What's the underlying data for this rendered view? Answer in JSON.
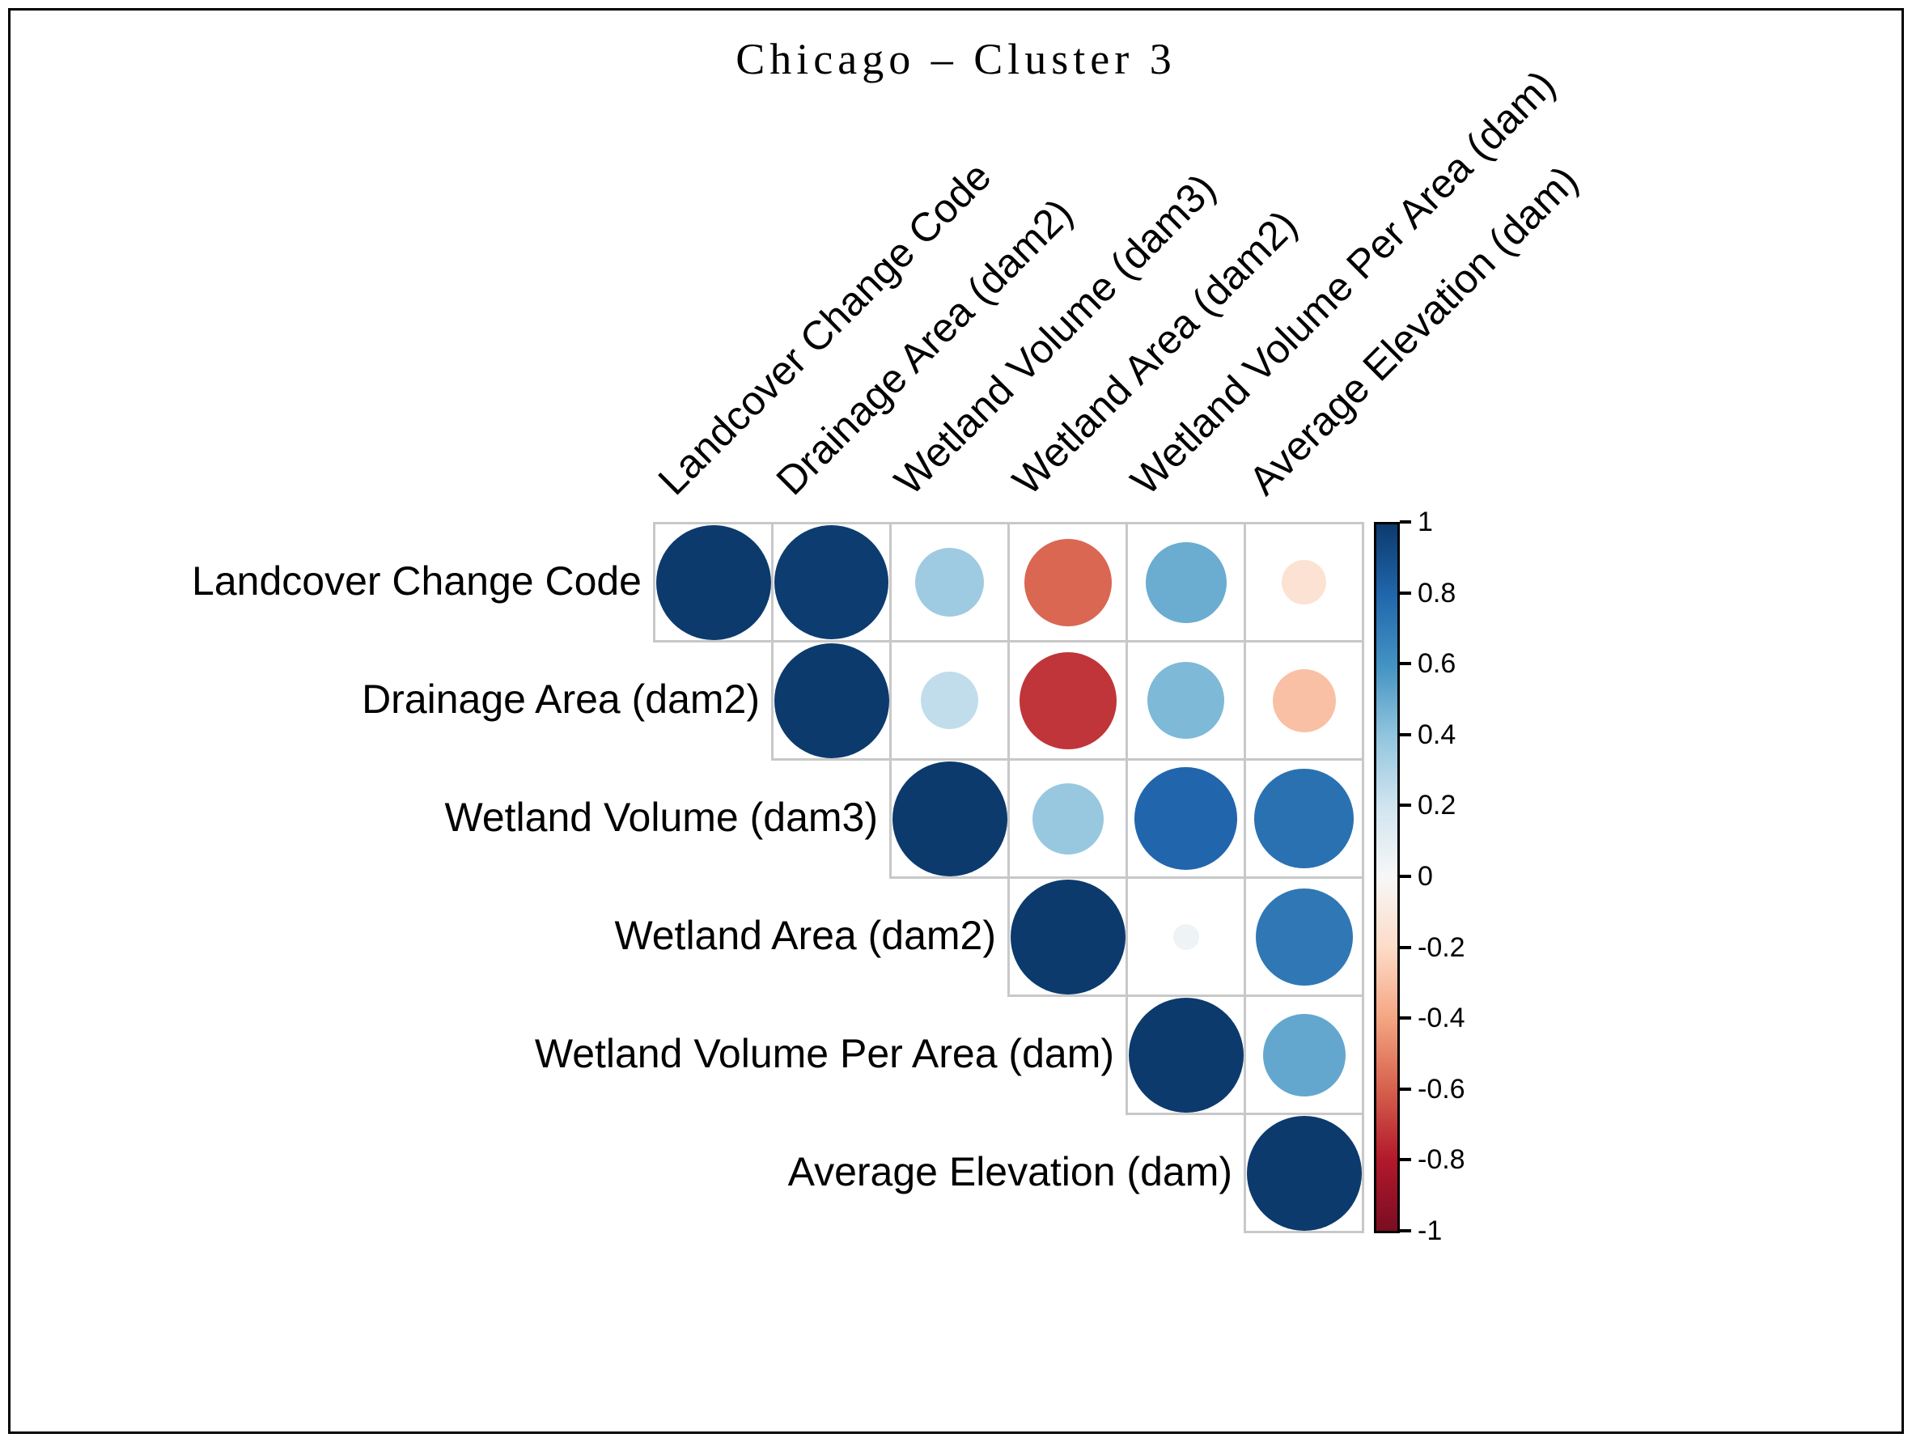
{
  "title": "Chicago – Cluster 3",
  "chart_data": {
    "type": "heatmap",
    "subtype": "correlation-matrix-circles",
    "title": "Chicago – Cluster 3",
    "layout": "upper-triangle",
    "grid": true,
    "variables": [
      "Landcover Change Code",
      "Drainage Area (dam2)",
      "Wetland Volume (dam3)",
      "Wetland Area (dam2)",
      "Wetland Volume Per Area (dam)",
      "Average Elevation (dam)"
    ],
    "values": [
      [
        1,
        0.99,
        0.36,
        -0.58,
        0.5,
        -0.15
      ],
      [
        null,
        1,
        0.25,
        -0.72,
        0.45,
        -0.3
      ],
      [
        null,
        null,
        1,
        0.38,
        0.8,
        0.75
      ],
      [
        null,
        null,
        null,
        1,
        0.05,
        0.72
      ],
      [
        null,
        null,
        null,
        null,
        1,
        0.52
      ],
      [
        null,
        null,
        null,
        null,
        null,
        1
      ]
    ],
    "value_range": [
      -1,
      1
    ],
    "legend": {
      "position": "right",
      "orientation": "vertical",
      "tick_values": [
        1,
        0.8,
        0.6,
        0.4,
        0.2,
        0,
        -0.2,
        -0.4,
        -0.6,
        -0.8,
        -1
      ],
      "tick_labels": [
        "1",
        "0.8",
        "0.6",
        "0.4",
        "0.2",
        "0",
        "-0.2",
        "-0.4",
        "-0.6",
        "-0.8",
        "-1"
      ]
    },
    "palette": {
      "name": "RdBu",
      "anchors": [
        {
          "value": 1.0,
          "color": "#0c3a6d"
        },
        {
          "value": 0.8,
          "color": "#2166ac"
        },
        {
          "value": 0.6,
          "color": "#4393c3"
        },
        {
          "value": 0.4,
          "color": "#92c5de"
        },
        {
          "value": 0.2,
          "color": "#d1e5f0"
        },
        {
          "value": 0.0,
          "color": "#f7f7f7"
        },
        {
          "value": -0.2,
          "color": "#fddbc7"
        },
        {
          "value": -0.4,
          "color": "#f4a582"
        },
        {
          "value": -0.6,
          "color": "#d6604d"
        },
        {
          "value": -0.8,
          "color": "#b2182b"
        },
        {
          "value": -1.0,
          "color": "#7a0d21"
        }
      ]
    },
    "grid_color": "#c8c8c8",
    "frame_color": "#000000"
  }
}
